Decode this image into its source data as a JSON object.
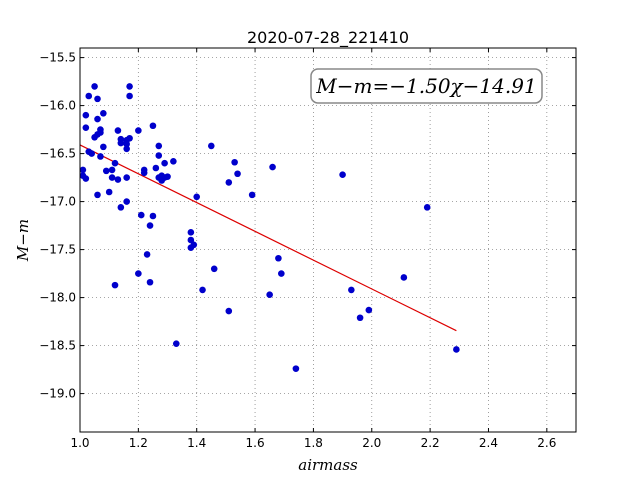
{
  "chart_data": {
    "type": "scatter",
    "title": "2020-07-28_221410",
    "xlabel": "airmass",
    "ylabel": "M−m",
    "xlim": [
      1.0,
      2.7
    ],
    "ylim": [
      -19.4,
      -15.4
    ],
    "y_inverted": true,
    "grid": true,
    "xticks": [
      1.0,
      1.2,
      1.4,
      1.6,
      1.8,
      2.0,
      2.2,
      2.4,
      2.6
    ],
    "xtick_labels": [
      "1.0",
      "1.2",
      "1.4",
      "1.6",
      "1.8",
      "2.0",
      "2.2",
      "2.4",
      "2.6"
    ],
    "yticks": [
      -15.5,
      -16.0,
      -16.5,
      -17.0,
      -17.5,
      -18.0,
      -18.5,
      -19.0
    ],
    "ytick_labels": [
      "−15.5",
      "−16.0",
      "−16.5",
      "−17.0",
      "−17.5",
      "−18.0",
      "−18.5",
      "−19.0"
    ],
    "annotation": "M−m=−1.50χ−14.91",
    "colors": {
      "points": "#0000cc",
      "fit": "#dd0000",
      "grid": "#888888"
    },
    "fit": {
      "slope": -1.5,
      "intercept": -14.91,
      "x_range": [
        1.0,
        2.29
      ]
    },
    "points": [
      [
        1.01,
        -16.67
      ],
      [
        1.01,
        -16.73
      ],
      [
        1.02,
        -16.1
      ],
      [
        1.02,
        -16.23
      ],
      [
        1.02,
        -16.76
      ],
      [
        1.03,
        -15.9
      ],
      [
        1.03,
        -16.48
      ],
      [
        1.04,
        -16.5
      ],
      [
        1.05,
        -15.8
      ],
      [
        1.05,
        -16.33
      ],
      [
        1.06,
        -15.93
      ],
      [
        1.06,
        -16.14
      ],
      [
        1.06,
        -16.3
      ],
      [
        1.06,
        -16.93
      ],
      [
        1.07,
        -16.25
      ],
      [
        1.07,
        -16.28
      ],
      [
        1.07,
        -16.53
      ],
      [
        1.08,
        -16.08
      ],
      [
        1.08,
        -16.43
      ],
      [
        1.09,
        -16.68
      ],
      [
        1.1,
        -16.9
      ],
      [
        1.11,
        -16.67
      ],
      [
        1.11,
        -16.75
      ],
      [
        1.12,
        -16.6
      ],
      [
        1.12,
        -17.87
      ],
      [
        1.13,
        -16.26
      ],
      [
        1.13,
        -16.77
      ],
      [
        1.14,
        -16.35
      ],
      [
        1.14,
        -16.39
      ],
      [
        1.14,
        -17.06
      ],
      [
        1.16,
        -16.36
      ],
      [
        1.16,
        -16.4
      ],
      [
        1.16,
        -16.45
      ],
      [
        1.16,
        -16.75
      ],
      [
        1.16,
        -17.0
      ],
      [
        1.17,
        -15.8
      ],
      [
        1.17,
        -15.9
      ],
      [
        1.17,
        -16.34
      ],
      [
        1.2,
        -16.26
      ],
      [
        1.2,
        -17.75
      ],
      [
        1.21,
        -17.14
      ],
      [
        1.22,
        -16.67
      ],
      [
        1.22,
        -16.7
      ],
      [
        1.23,
        -17.55
      ],
      [
        1.24,
        -17.84
      ],
      [
        1.24,
        -17.25
      ],
      [
        1.25,
        -16.21
      ],
      [
        1.25,
        -17.15
      ],
      [
        1.26,
        -16.65
      ],
      [
        1.27,
        -16.42
      ],
      [
        1.27,
        -16.52
      ],
      [
        1.27,
        -16.75
      ],
      [
        1.28,
        -16.73
      ],
      [
        1.28,
        -16.78
      ],
      [
        1.29,
        -16.6
      ],
      [
        1.29,
        -16.75
      ],
      [
        1.3,
        -16.74
      ],
      [
        1.32,
        -16.58
      ],
      [
        1.33,
        -18.48
      ],
      [
        1.38,
        -17.32
      ],
      [
        1.38,
        -17.4
      ],
      [
        1.38,
        -17.48
      ],
      [
        1.39,
        -17.45
      ],
      [
        1.4,
        -16.95
      ],
      [
        1.42,
        -17.92
      ],
      [
        1.45,
        -16.42
      ],
      [
        1.46,
        -17.7
      ],
      [
        1.51,
        -18.14
      ],
      [
        1.51,
        -16.8
      ],
      [
        1.53,
        -16.59
      ],
      [
        1.54,
        -16.71
      ],
      [
        1.59,
        -16.93
      ],
      [
        1.65,
        -17.97
      ],
      [
        1.66,
        -16.64
      ],
      [
        1.68,
        -17.59
      ],
      [
        1.69,
        -17.75
      ],
      [
        1.74,
        -18.74
      ],
      [
        1.9,
        -16.72
      ],
      [
        1.93,
        -17.92
      ],
      [
        1.96,
        -18.21
      ],
      [
        1.99,
        -18.13
      ],
      [
        2.11,
        -17.79
      ],
      [
        2.19,
        -17.06
      ],
      [
        2.29,
        -18.54
      ]
    ]
  }
}
